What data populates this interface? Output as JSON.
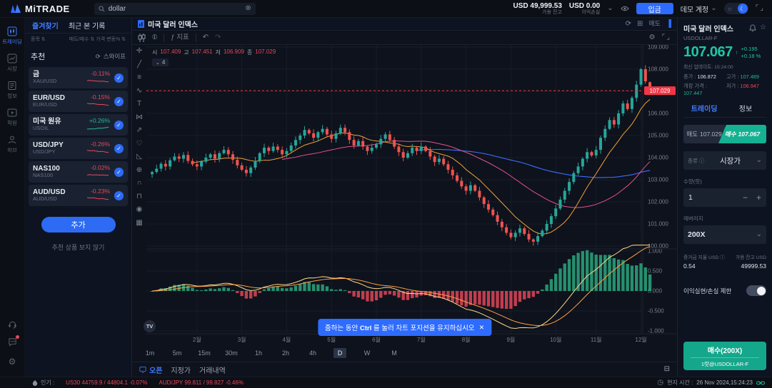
{
  "app": {
    "logo": "MiTRADE"
  },
  "topbar": {
    "search_value": "dollar",
    "balance": {
      "value": "USD 49,999.53",
      "label": "가용 잔고"
    },
    "pnl": {
      "value": "USD 0.00",
      "label": "이익손실"
    },
    "deposit_label": "입금",
    "account_label": "데모 계정"
  },
  "sidebar": {
    "items": [
      {
        "label": "트레이딩",
        "icon": "trading-icon",
        "active": true
      },
      {
        "label": "시장",
        "icon": "market-icon",
        "active": false
      },
      {
        "label": "정보",
        "icon": "news-icon",
        "active": false
      },
      {
        "label": "학원",
        "icon": "academy-icon",
        "active": false
      },
      {
        "label": "허브",
        "icon": "hub-icon",
        "active": false
      }
    ],
    "bottom_icons": [
      "support-icon",
      "chat-icon",
      "settings-icon"
    ]
  },
  "watchlist": {
    "tabs": [
      {
        "label": "즐겨찾기",
        "active": true
      },
      {
        "label": "최근 본 기록",
        "active": false
      }
    ],
    "sort_left": "종목",
    "sort_right_a": "매도/매수",
    "sort_right_b": "가격 변동%",
    "section_title": "추천",
    "swipe_label": "스와이프",
    "items": [
      {
        "name": "금",
        "code": "XAU/USD",
        "change": "-0.11%",
        "dir": "down",
        "spark": [
          5,
          5.2,
          4.8,
          4.4,
          4.0,
          4.2,
          3.6,
          3.2
        ]
      },
      {
        "name": "EUR/USD",
        "code": "EUR/USD",
        "change": "-0.15%",
        "dir": "down",
        "spark": [
          6,
          5.5,
          5.8,
          5.0,
          4.4,
          4.6,
          3.9,
          3.4
        ]
      },
      {
        "name": "미국 원유",
        "code": "USOIL",
        "change": "+0.26%",
        "dir": "up",
        "spark": [
          3,
          3.4,
          3.1,
          3.8,
          4.4,
          4.2,
          5.0,
          5.6
        ]
      },
      {
        "name": "USD/JPY",
        "code": "USD/JPY",
        "change": "-0.26%",
        "dir": "down",
        "spark": [
          6.2,
          5.6,
          5.9,
          5.1,
          4.5,
          4.8,
          3.8,
          3.2
        ]
      },
      {
        "name": "NAS100",
        "code": "NAS100",
        "change": "-0.02%",
        "dir": "down",
        "spark": [
          4.8,
          5.1,
          4.6,
          4.9,
          4.4,
          4.7,
          4.3,
          4.5
        ]
      },
      {
        "name": "AUD/USD",
        "code": "AUD/USD",
        "change": "-0.23%",
        "dir": "down",
        "spark": [
          6,
          5.4,
          5.7,
          4.9,
          4.3,
          4.6,
          3.7,
          3.3
        ]
      }
    ],
    "add_label": "추가",
    "hide_label": "추천 상품 보지 않기"
  },
  "chart": {
    "tab_title": "미국 달러 인덱스",
    "header_sell_label": "매도",
    "indicator_label": "지표",
    "interval_value": "4",
    "ohlc": {
      "o_label": "시",
      "o": "107.409",
      "h_label": "고",
      "h": "107.451",
      "l_label": "저",
      "l": "106.909",
      "c_label": "종",
      "c": "107.029"
    },
    "tooltip": {
      "pre": "줌하는 동안",
      "key": "Ctrl",
      "post": "를 눌러 차트 포지션을 유지하십시오",
      "close": "✕"
    },
    "logo": "TV",
    "timeframes": [
      "1m",
      "5m",
      "15m",
      "30m",
      "1h",
      "2h",
      "4h",
      "D",
      "W",
      "M"
    ],
    "active_timeframe": "D",
    "bottom_tabs": [
      {
        "label": "오픈",
        "active": true
      },
      {
        "label": "지정가",
        "active": false
      },
      {
        "label": "거래내역",
        "active": false
      }
    ],
    "draw_tools": [
      "crosshair",
      "trend-line",
      "fib-retracement",
      "brush",
      "text",
      "xabcd-pattern",
      "forecast",
      "emoji",
      "measure",
      "zoom-in",
      "magnet",
      "lock",
      "eye",
      "trash"
    ]
  },
  "chart_data": {
    "type": "candlestick",
    "title": "미국 달러 인덱스 (USDOLLAR-F)",
    "timeframe": "D",
    "x_labels": [
      "2월",
      "3월",
      "4월",
      "5월",
      "6월",
      "7월",
      "8월",
      "9월",
      "10월",
      "11월",
      "12월"
    ],
    "x_label_indices": [
      10,
      20,
      30,
      40,
      50,
      60,
      70,
      80,
      90,
      99,
      109
    ],
    "closes": [
      103.35,
      103.5,
      103.72,
      103.6,
      103.88,
      104.05,
      103.95,
      104.12,
      103.85,
      103.7,
      103.6,
      103.82,
      104.0,
      104.15,
      103.95,
      104.2,
      104.35,
      104.15,
      103.9,
      103.65,
      103.45,
      103.3,
      103.55,
      103.85,
      104.2,
      104.45,
      104.3,
      104.5,
      104.35,
      104.15,
      104.3,
      104.55,
      104.8,
      105.0,
      105.25,
      105.1,
      104.9,
      105.15,
      105.3,
      105.05,
      104.85,
      105.1,
      105.35,
      105.15,
      104.8,
      104.55,
      104.75,
      104.5,
      104.3,
      104.45,
      104.6,
      104.85,
      105.05,
      104.8,
      104.5,
      104.25,
      104.0,
      104.2,
      104.45,
      104.3,
      104.5,
      104.3,
      104.05,
      103.8,
      103.95,
      103.7,
      103.45,
      103.2,
      102.95,
      102.7,
      102.5,
      102.75,
      102.5,
      102.2,
      101.9,
      101.65,
      101.4,
      101.1,
      100.85,
      100.6,
      100.4,
      100.6,
      100.8,
      100.55,
      100.3,
      100.2,
      100.45,
      100.7,
      101.0,
      101.35,
      101.7,
      102.1,
      102.5,
      102.9,
      103.3,
      103.6,
      103.95,
      104.25,
      104.1,
      104.35,
      104.9,
      105.3,
      105.7,
      105.5,
      106.0,
      106.45,
      106.2,
      106.7,
      107.3,
      108.0,
      107.45,
      107.029
    ],
    "last_candle": {
      "open": 107.409,
      "high": 107.451,
      "low": 106.909,
      "close": 107.029
    },
    "last_price": "107.029",
    "price_axis_ticks": [
      109,
      108,
      106,
      105,
      104,
      103,
      102,
      101,
      100
    ],
    "price_range": [
      99.6,
      109.2
    ],
    "indicator": {
      "name": "MACD",
      "axis_ticks": [
        "1.000",
        "0.500",
        "0.000",
        "-0.500",
        "-1.000"
      ]
    },
    "overlays": [
      "SMA10",
      "SMA30",
      "SMA60"
    ],
    "colors": {
      "up": "#26a69a",
      "down": "#ef5350",
      "sma10": "#f0a135",
      "sma30": "#e4508f",
      "sma60": "#3d6dff",
      "last_price": "#f23645",
      "macd_line": "#ffd98a",
      "signal_line": "#ff9f43",
      "hist_up": "#2aa77c",
      "hist_down": "#e14658",
      "grid": "#161d2a",
      "axis_text": "#787f8c"
    }
  },
  "trade_panel": {
    "title": "미국 달러 인덱스",
    "symbol": "USDOLLAR-F",
    "price": "107.067",
    "arrow": "↑",
    "change_abs": "+0.195",
    "change_pct": "+0.18 %",
    "updated": "최신 업데이트: 15:24:00",
    "stats": [
      {
        "label": "종가",
        "value": "106.872",
        "cls": "w"
      },
      {
        "label": "고가",
        "value": "107.489",
        "cls": "up"
      },
      {
        "label": "개장 가격",
        "value": "107.447",
        "cls": "up"
      },
      {
        "label": "저가",
        "value": "106.947",
        "cls": "dn"
      }
    ],
    "tabs": [
      {
        "label": "트레이딩",
        "active": true
      },
      {
        "label": "정보",
        "active": false
      }
    ],
    "sell": {
      "label": "매도",
      "price": "107.029"
    },
    "buy": {
      "label": "매수",
      "price": "107.067"
    },
    "order_type": {
      "label": "종류",
      "value": "시장가"
    },
    "qty": {
      "label": "수량(랏)",
      "value": "1",
      "minus": "−",
      "plus": "+"
    },
    "leverage": {
      "label": "레버리지",
      "value": "200X"
    },
    "margin": {
      "label": "증거금 지율 USD",
      "value": "0.54"
    },
    "available": {
      "label": "가용 잔고 USD",
      "value": "49999.53"
    },
    "tp_sl_label": "이익실현/손실 제한",
    "submit": {
      "line1": "매수(200X)",
      "line2": "1랏@USDOLLAR-F"
    }
  },
  "statusbar": {
    "popular_label": "인기 :",
    "quotes": [
      {
        "text": "US30 44759.9 / 44804.1 -0.07%"
      },
      {
        "text": "AUD/JPY 99.811 / 99.827 -0.46%"
      }
    ],
    "local_time_label": "현지 시간 :",
    "local_time": "26 Nov 2024,15:24:23"
  }
}
